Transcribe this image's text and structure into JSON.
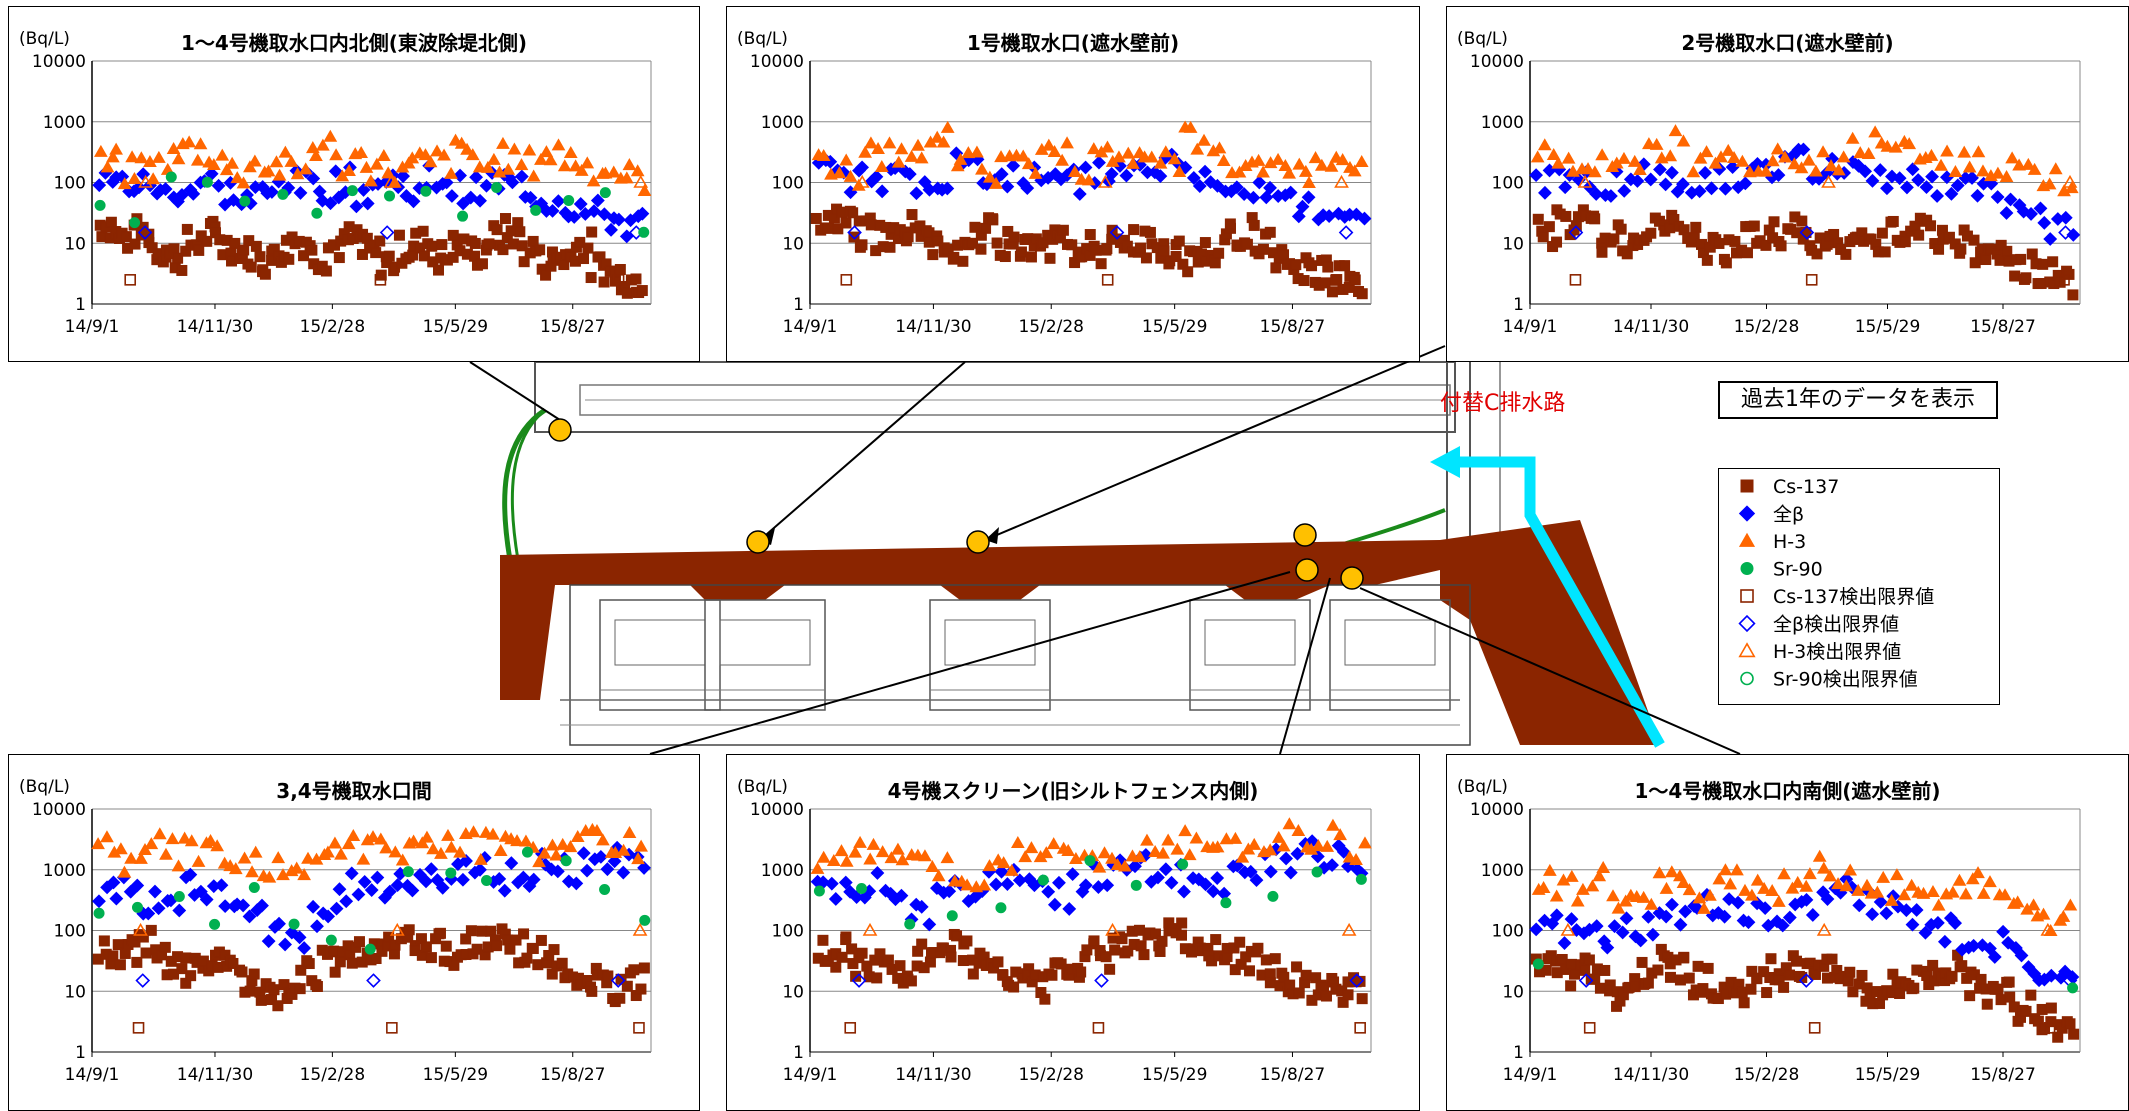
{
  "note": "過去1年のデータを表示",
  "channel_label": "付替C排水路",
  "legend": [
    {
      "label": "Cs-137",
      "marker": "square",
      "filled": true,
      "color": "#8B2500"
    },
    {
      "label": "全β",
      "marker": "diamond",
      "filled": true,
      "color": "#0000ff"
    },
    {
      "label": "H-3",
      "marker": "triangle",
      "filled": true,
      "color": "#ff6600"
    },
    {
      "label": "Sr-90",
      "marker": "circle",
      "filled": true,
      "color": "#00b050"
    },
    {
      "label": "Cs-137検出限界値",
      "marker": "square",
      "filled": false,
      "color": "#8B2500"
    },
    {
      "label": "全β検出限界値",
      "marker": "diamond",
      "filled": false,
      "color": "#0000ff"
    },
    {
      "label": "H-3検出限界値",
      "marker": "triangle",
      "filled": false,
      "color": "#ff6600"
    },
    {
      "label": "Sr-90検出限界値",
      "marker": "circle",
      "filled": false,
      "color": "#00b050"
    }
  ],
  "colors": {
    "cs137": "#8B2500",
    "beta": "#0000ff",
    "h3": "#ff6600",
    "sr90": "#00b050",
    "channel": "#00e5ff",
    "label_red": "#e00000"
  },
  "chart_data": [
    {
      "type": "scatter",
      "title": "1〜4号機取水口内北側(東波除堤北側)",
      "ylabel": "(Bq/L)",
      "yscale": "log",
      "ylim": [
        1,
        10000
      ],
      "yticks": [
        "1",
        "10",
        "100",
        "1000",
        "10000"
      ],
      "xticks": [
        "14/9/1",
        "14/11/30",
        "15/2/28",
        "15/5/29",
        "15/8/27"
      ],
      "levels": {
        "cs137": [
          3,
          70,
          0.8
        ],
        "beta": [
          10,
          200,
          0.75
        ],
        "h3": [
          60,
          500,
          0.95
        ],
        "sr90": [
          15,
          150,
          0.4
        ]
      },
      "series": [
        {
          "name": "Cs-137",
          "values": [
            20,
            12,
            15,
            8,
            6,
            10,
            14,
            9,
            7,
            5,
            8,
            11,
            6,
            9,
            12,
            7,
            5,
            8,
            10,
            6,
            9,
            7,
            12,
            15,
            8,
            5,
            6,
            9,
            4,
            3,
            2.5
          ]
        },
        {
          "name": "全β",
          "values": [
            100,
            95,
            90,
            60,
            80,
            100,
            70,
            50,
            60,
            110,
            90,
            80,
            100,
            70,
            95,
            105,
            60,
            120,
            80,
            70,
            100,
            90,
            60,
            50,
            40,
            30,
            25,
            20
          ]
        },
        {
          "name": "H-3",
          "values": [
            200,
            150,
            180,
            250,
            350,
            300,
            150,
            200,
            180,
            150,
            400,
            200,
            250,
            180,
            150,
            200,
            220,
            300,
            180,
            250,
            200,
            300,
            250,
            180,
            150,
            120
          ]
        },
        {
          "name": "Sr-90",
          "values": [
            50,
            30,
            80,
            120,
            60,
            40,
            55,
            70,
            90,
            60,
            40,
            50,
            30,
            45,
            60,
            20
          ]
        }
      ]
    },
    {
      "type": "scatter",
      "title": "1号機取水口(遮水壁前)",
      "ylabel": "(Bq/L)",
      "yscale": "log",
      "ylim": [
        1,
        10000
      ],
      "yticks": [
        "1",
        "10",
        "100",
        "1000",
        "10000"
      ],
      "xticks": [
        "14/9/1",
        "14/11/30",
        "15/2/28",
        "15/5/29",
        "15/8/27"
      ],
      "levels": {
        "cs137": [
          5,
          40,
          1
        ],
        "beta": [
          30,
          250,
          0.8
        ],
        "h3": [
          100,
          600,
          0.85
        ],
        "sr90": [
          0,
          0,
          0
        ]
      },
      "series": [
        {
          "name": "Cs-137",
          "values": [
            20,
            25,
            15,
            12,
            18,
            22,
            10,
            8,
            12,
            15,
            9,
            7,
            10,
            14,
            8,
            6,
            12,
            10,
            9,
            7,
            5,
            8,
            12,
            15,
            10,
            6,
            4,
            3,
            2.5,
            2
          ]
        },
        {
          "name": "全β",
          "values": [
            150,
            120,
            100,
            130,
            90,
            80,
            200,
            150,
            120,
            100,
            90,
            110,
            130,
            150,
            160,
            180,
            120,
            100,
            90,
            80,
            60,
            40,
            30,
            20
          ]
        },
        {
          "name": "H-3",
          "values": [
            200,
            150,
            300,
            250,
            400,
            600,
            200,
            150,
            300,
            200,
            250,
            180,
            400,
            300,
            250,
            200,
            500,
            300,
            250,
            200,
            180,
            150,
            200,
            180
          ]
        },
        {
          "name": "Sr-90",
          "values": []
        }
      ]
    },
    {
      "type": "scatter",
      "title": "2号機取水口(遮水壁前)",
      "ylabel": "(Bq/L)",
      "yscale": "log",
      "ylim": [
        1,
        10000
      ],
      "yticks": [
        "1",
        "10",
        "100",
        "1000",
        "10000"
      ],
      "xticks": [
        "14/9/1",
        "14/11/30",
        "15/2/28",
        "15/5/29",
        "15/8/27"
      ],
      "levels": {
        "cs137": [
          4,
          40,
          1
        ],
        "beta": [
          40,
          250,
          0.85
        ],
        "h3": [
          100,
          450,
          0.85
        ],
        "sr90": [
          0,
          0,
          0
        ]
      },
      "series": [
        {
          "name": "Cs-137",
          "values": [
            15,
            20,
            25,
            12,
            10,
            18,
            22,
            15,
            9,
            8,
            12,
            14,
            16,
            10,
            8,
            9,
            12,
            15,
            18,
            14,
            10,
            8,
            6,
            4,
            3,
            2.5
          ]
        },
        {
          "name": "全β",
          "values": [
            120,
            110,
            100,
            90,
            130,
            150,
            120,
            100,
            140,
            160,
            180,
            200,
            150,
            130,
            120,
            110,
            100,
            90,
            80,
            60,
            40,
            25,
            20
          ]
        },
        {
          "name": "H-3",
          "values": [
            250,
            200,
            180,
            300,
            250,
            400,
            200,
            300,
            250,
            200,
            180,
            220,
            300,
            400,
            350,
            300,
            250,
            200,
            180,
            150,
            120
          ]
        },
        {
          "name": "Sr-90",
          "values": []
        }
      ]
    },
    {
      "type": "scatter",
      "title": "3,4号機取水口間",
      "ylabel": "(Bq/L)",
      "yscale": "log",
      "ylim": [
        1,
        10000
      ],
      "yticks": [
        "1",
        "10",
        "100",
        "1000",
        "10000"
      ],
      "xticks": [
        "14/9/1",
        "14/11/30",
        "15/2/28",
        "15/5/29",
        "15/8/27"
      ],
      "levels": {
        "cs137": [
          8,
          90,
          0.6
        ],
        "beta": [
          60,
          1500,
          0.85
        ],
        "h3": [
          300,
          3500,
          0.85
        ],
        "sr90": [
          120,
          1500,
          0.4
        ]
      },
      "series": [
        {
          "name": "Cs-137",
          "values": [
            50,
            40,
            60,
            30,
            20,
            35,
            25,
            15,
            10,
            8,
            20,
            30,
            45,
            50,
            60,
            70,
            55,
            40,
            60,
            70,
            50,
            40,
            30,
            20,
            15,
            12,
            14
          ]
        },
        {
          "name": "全β",
          "values": [
            400,
            600,
            300,
            200,
            500,
            400,
            300,
            200,
            100,
            60,
            200,
            400,
            500,
            600,
            800,
            700,
            600,
            900,
            1000,
            800,
            700,
            1200,
            900,
            1100,
            1400,
            1500
          ]
        },
        {
          "name": "H-3",
          "values": [
            2000,
            1500,
            2500,
            2000,
            1800,
            1500,
            1200,
            1000,
            900,
            1500,
            2000,
            2500,
            2000,
            1800,
            2500,
            3000,
            2500,
            3000,
            2000,
            1500,
            2500,
            3500,
            3000,
            2500
          ]
        },
        {
          "name": "Sr-90",
          "values": [
            300,
            400,
            250,
            200,
            300,
            150,
            100,
            80,
            600,
            700,
            500,
            1500,
            800,
            600,
            200
          ]
        }
      ]
    },
    {
      "type": "scatter",
      "title": "4号機スクリーン(旧シルトフェンス内側)",
      "ylabel": "(Bq/L)",
      "yscale": "log",
      "ylim": [
        1,
        10000
      ],
      "yticks": [
        "1",
        "10",
        "100",
        "1000",
        "10000"
      ],
      "xticks": [
        "14/9/1",
        "14/11/30",
        "15/2/28",
        "15/5/29",
        "15/8/27"
      ],
      "levels": {
        "cs137": [
          8,
          100,
          1
        ],
        "beta": [
          80,
          1800,
          0.85
        ],
        "h3": [
          500,
          3500,
          0.85
        ],
        "sr90": [
          80,
          1200,
          0.4
        ]
      },
      "series": [
        {
          "name": "Cs-137",
          "values": [
            40,
            50,
            30,
            25,
            20,
            35,
            40,
            50,
            30,
            20,
            15,
            12,
            20,
            30,
            40,
            50,
            60,
            70,
            80,
            60,
            50,
            40,
            30,
            20,
            15,
            12,
            10,
            12
          ]
        },
        {
          "name": "全β",
          "values": [
            400,
            500,
            600,
            300,
            200,
            400,
            500,
            600,
            700,
            500,
            400,
            600,
            800,
            900,
            1000,
            800,
            700,
            600,
            900,
            1200,
            1500,
            1800,
            1600,
            1400
          ]
        },
        {
          "name": "H-3",
          "values": [
            1500,
            2000,
            1800,
            1500,
            1200,
            1000,
            900,
            1500,
            2000,
            2500,
            2000,
            1800,
            1500,
            2000,
            2500,
            3000,
            2500,
            2000,
            3000,
            3500,
            3000,
            2500
          ]
        },
        {
          "name": "Sr-90",
          "values": [
            400,
            300,
            200,
            150,
            300,
            400,
            800,
            600,
            1000,
            500,
            300,
            800,
            1200
          ]
        }
      ]
    },
    {
      "type": "scatter",
      "title": "1〜4号機取水口内南側(遮水壁前)",
      "ylabel": "(Bq/L)",
      "yscale": "log",
      "ylim": [
        1,
        10000
      ],
      "yticks": [
        "1",
        "10",
        "100",
        "1000",
        "10000"
      ],
      "xticks": [
        "14/9/1",
        "14/11/30",
        "15/2/28",
        "15/5/29",
        "15/8/27"
      ],
      "levels": {
        "cs137": [
          4,
          60,
          1
        ],
        "beta": [
          40,
          450,
          0.85
        ],
        "h3": [
          80,
          1000,
          0.85
        ],
        "sr90": [
          20,
          80,
          0.2
        ]
      },
      "series": [
        {
          "name": "Cs-137",
          "values": [
            30,
            20,
            25,
            15,
            10,
            20,
            30,
            25,
            15,
            10,
            8,
            12,
            20,
            25,
            30,
            20,
            15,
            10,
            12,
            15,
            20,
            25,
            15,
            10,
            8,
            5,
            4,
            3
          ]
        },
        {
          "name": "全β",
          "values": [
            120,
            100,
            90,
            80,
            120,
            150,
            200,
            250,
            300,
            200,
            150,
            200,
            300,
            400,
            300,
            250,
            200,
            150,
            100,
            80,
            60,
            40,
            20,
            15
          ]
        },
        {
          "name": "H-3",
          "values": [
            600,
            500,
            700,
            400,
            300,
            600,
            500,
            400,
            800,
            600,
            500,
            700,
            1000,
            800,
            600,
            500,
            400,
            300,
            500,
            400,
            300,
            200,
            150
          ]
        },
        {
          "name": "Sr-90",
          "values": [
            40,
            20
          ]
        }
      ]
    }
  ]
}
